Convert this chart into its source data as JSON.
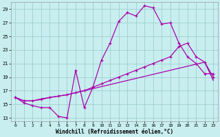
{
  "xlabel": "Windchill (Refroidissement éolien,°C)",
  "xlim": [
    -0.5,
    23.5
  ],
  "ylim": [
    12.5,
    30.0
  ],
  "yticks": [
    13,
    15,
    17,
    19,
    21,
    23,
    25,
    27,
    29
  ],
  "xticks": [
    0,
    1,
    2,
    3,
    4,
    5,
    6,
    7,
    8,
    9,
    10,
    11,
    12,
    13,
    14,
    15,
    16,
    17,
    18,
    19,
    20,
    21,
    22,
    23
  ],
  "bg_color": "#c8eef0",
  "line_color": "#aa00aa",
  "grid_color": "#9ecece",
  "line1_x": [
    0,
    1,
    2,
    3,
    4,
    5,
    6,
    7,
    8,
    9,
    10,
    11,
    12,
    13,
    14,
    15,
    16,
    17,
    18,
    19,
    20,
    21,
    22,
    23
  ],
  "line1_y": [
    16.0,
    15.2,
    14.8,
    14.5,
    14.5,
    13.2,
    13.0,
    20.0,
    14.5,
    17.5,
    21.5,
    24.0,
    27.2,
    28.5,
    28.0,
    29.5,
    29.2,
    26.8,
    27.0,
    24.0,
    22.0,
    21.0,
    19.5,
    19.5
  ],
  "line2_x": [
    0,
    1,
    2,
    3,
    4,
    5,
    6,
    7,
    8,
    9,
    10,
    11,
    12,
    13,
    14,
    15,
    16,
    17,
    18,
    19,
    20,
    21,
    22,
    23
  ],
  "line2_y": [
    16.0,
    15.5,
    15.5,
    15.7,
    16.0,
    16.2,
    16.4,
    16.7,
    17.0,
    17.5,
    18.0,
    18.5,
    19.0,
    19.5,
    20.0,
    20.5,
    21.0,
    21.5,
    22.0,
    23.5,
    24.0,
    22.0,
    21.2,
    19.0
  ],
  "line3_x": [
    0,
    1,
    2,
    3,
    4,
    5,
    6,
    7,
    8,
    9,
    10,
    11,
    12,
    13,
    14,
    15,
    16,
    17,
    18,
    19,
    20,
    21,
    22,
    23
  ],
  "line3_y": [
    16.0,
    15.5,
    15.5,
    15.8,
    16.0,
    16.2,
    16.4,
    16.7,
    17.0,
    17.3,
    17.6,
    17.9,
    18.2,
    18.5,
    18.8,
    19.1,
    19.4,
    19.7,
    20.0,
    20.3,
    20.6,
    20.9,
    21.2,
    18.5
  ]
}
